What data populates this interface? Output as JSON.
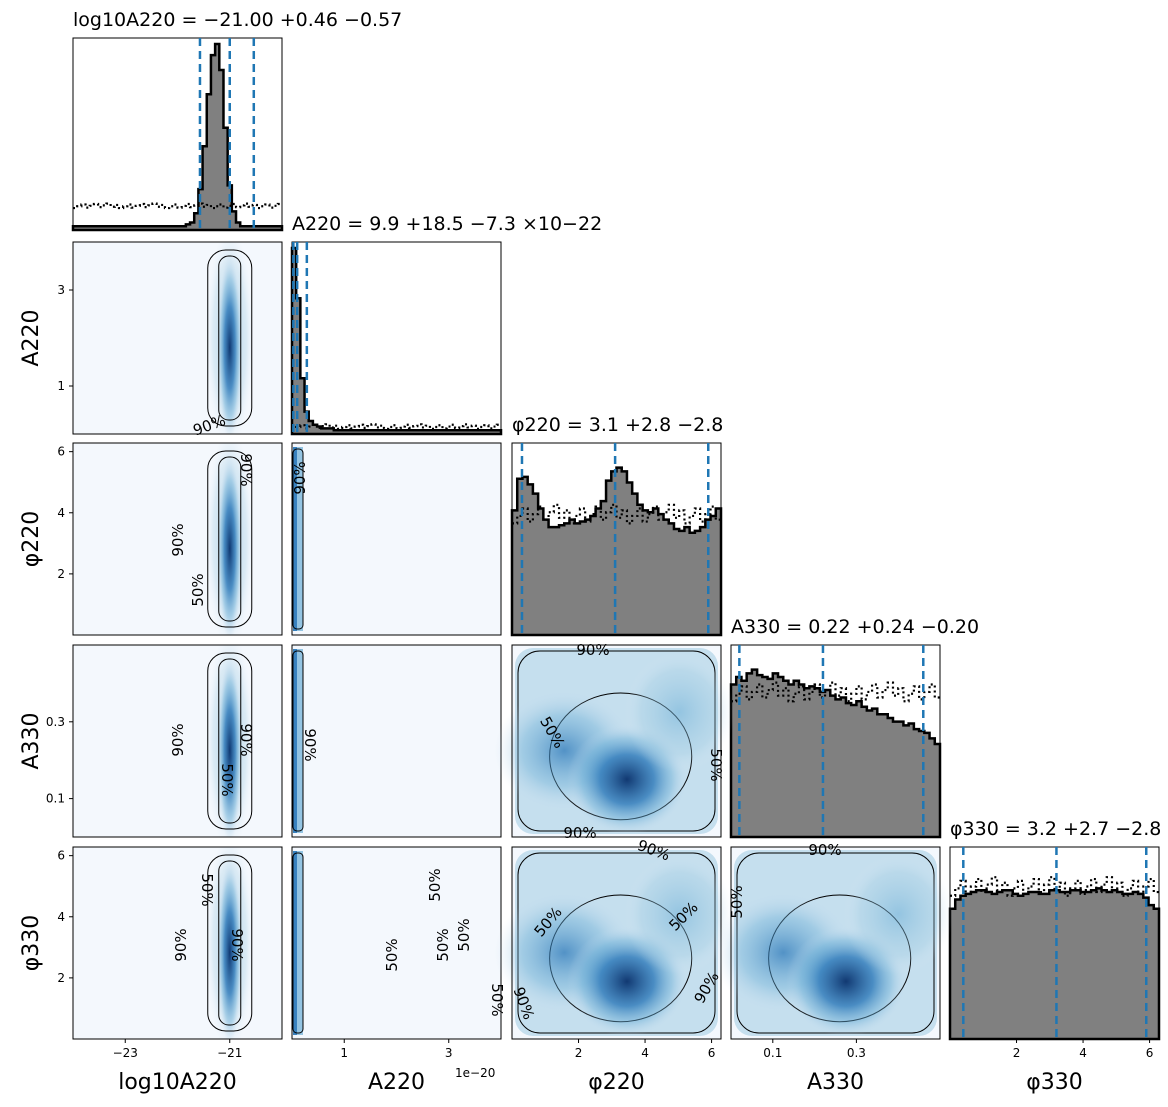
{
  "chart_data": {
    "type": "corner",
    "parameters": [
      {
        "key": "log10A220",
        "axis_label": "log10A220",
        "range": [
          -24.0,
          -20.0
        ],
        "ticks": [
          -23,
          -21
        ],
        "tick_labels": [
          "−23",
          "−21"
        ],
        "title": "log10A220 = −21.00 +0.46 −0.57",
        "quantiles": [
          -21.57,
          -21.0,
          -20.54
        ],
        "median": -21.0,
        "plus": 0.46,
        "minus": 0.57
      },
      {
        "key": "A220",
        "axis_label": "A220",
        "range": [
          0.0,
          4.0
        ],
        "ticks": [
          1,
          3
        ],
        "tick_labels": [
          "1",
          "3"
        ],
        "sci_offset": "1e−20",
        "title": "A220 = 9.9 +18.5 −7.3 ×10−22",
        "quantiles": [
          0.026,
          0.099,
          0.284
        ],
        "median": 9.9,
        "plus": 18.5,
        "minus": 7.3,
        "multiplier": "×10−22"
      },
      {
        "key": "phi220",
        "axis_label": "φ220",
        "range": [
          0.0,
          6.2832
        ],
        "ticks": [
          2,
          4,
          6
        ],
        "tick_labels": [
          "2",
          "4",
          "6"
        ],
        "title": "φ220 = 3.1 +2.8 −2.8",
        "quantiles": [
          0.3,
          3.1,
          5.9
        ],
        "median": 3.1,
        "plus": 2.8,
        "minus": 2.8
      },
      {
        "key": "A330",
        "axis_label": "A330",
        "range": [
          0.0,
          0.5
        ],
        "ticks": [
          0.1,
          0.3
        ],
        "tick_labels": [
          "0.1",
          "0.3"
        ],
        "title": "A330 = 0.22 +0.24 −0.20",
        "quantiles": [
          0.02,
          0.22,
          0.46
        ],
        "median": 0.22,
        "plus": 0.24,
        "minus": 0.2
      },
      {
        "key": "phi330",
        "axis_label": "φ330",
        "range": [
          0.0,
          6.2832
        ],
        "ticks": [
          2,
          4,
          6
        ],
        "tick_labels": [
          "2",
          "4",
          "6"
        ],
        "title": "φ330 = 3.2 +2.7 −2.8",
        "quantiles": [
          0.4,
          3.2,
          5.9
        ],
        "median": 3.2,
        "plus": 2.7,
        "minus": 2.8
      }
    ],
    "y_ticks": {
      "A220": {
        "ticks": [
          1,
          3
        ],
        "tick_labels": [
          "1",
          "3"
        ]
      },
      "phi220": {
        "ticks": [
          2,
          4,
          6
        ],
        "tick_labels": [
          "2",
          "4",
          "6"
        ]
      },
      "A330": {
        "ticks": [
          0.1,
          0.3
        ],
        "tick_labels": [
          "0.1",
          "0.3"
        ]
      },
      "phi330": {
        "ticks": [
          2,
          4,
          6
        ],
        "tick_labels": [
          "2",
          "4",
          "6"
        ]
      }
    },
    "histograms_1d": {
      "posterior": {
        "log10A220": [
          0.02,
          0.02,
          0.02,
          0.02,
          0.02,
          0.02,
          0.02,
          0.02,
          0.02,
          0.02,
          0.02,
          0.02,
          0.02,
          0.02,
          0.02,
          0.02,
          0.02,
          0.02,
          0.02,
          0.02,
          0.02,
          0.02,
          0.02,
          0.02,
          0.02,
          0.02,
          0.02,
          0.03,
          0.04,
          0.09,
          0.22,
          0.45,
          0.73,
          0.94,
          1.0,
          0.86,
          0.55,
          0.24,
          0.1,
          0.04,
          0.02,
          0.02,
          0.02,
          0.02,
          0.02,
          0.02,
          0.02,
          0.02,
          0.02,
          0.02
        ],
        "A220": [
          1.0,
          0.73,
          0.3,
          0.12,
          0.07,
          0.05,
          0.04,
          0.03,
          0.03,
          0.03,
          0.02,
          0.02,
          0.02,
          0.02,
          0.02,
          0.02,
          0.02,
          0.02,
          0.02,
          0.02,
          0.02,
          0.02,
          0.02,
          0.02,
          0.02,
          0.02,
          0.02,
          0.02,
          0.02,
          0.02,
          0.02,
          0.02,
          0.02,
          0.02,
          0.02,
          0.02,
          0.02,
          0.02,
          0.02,
          0.02,
          0.02,
          0.02,
          0.02,
          0.02,
          0.02,
          0.02,
          0.02,
          0.02,
          0.02,
          0.02
        ],
        "phi220": [
          0.67,
          0.84,
          0.85,
          0.81,
          0.76,
          0.68,
          0.62,
          0.58,
          0.58,
          0.59,
          0.6,
          0.62,
          0.6,
          0.61,
          0.62,
          0.64,
          0.68,
          0.72,
          0.83,
          0.88,
          0.9,
          0.88,
          0.82,
          0.76,
          0.7,
          0.67,
          0.66,
          0.68,
          0.65,
          0.62,
          0.6,
          0.57,
          0.56,
          0.58,
          0.55,
          0.56,
          0.58,
          0.62,
          0.64,
          0.68
        ],
        "A330": [
          0.82,
          0.86,
          0.84,
          0.88,
          0.9,
          0.87,
          0.86,
          0.85,
          0.88,
          0.86,
          0.84,
          0.82,
          0.84,
          0.82,
          0.8,
          0.81,
          0.8,
          0.78,
          0.79,
          0.76,
          0.74,
          0.75,
          0.72,
          0.71,
          0.73,
          0.7,
          0.68,
          0.69,
          0.66,
          0.66,
          0.64,
          0.62,
          0.62,
          0.6,
          0.61,
          0.58,
          0.57,
          0.56,
          0.53,
          0.5
        ],
        "phi330": [
          0.7,
          0.75,
          0.77,
          0.78,
          0.79,
          0.8,
          0.8,
          0.79,
          0.78,
          0.79,
          0.8,
          0.8,
          0.78,
          0.77,
          0.78,
          0.79,
          0.79,
          0.78,
          0.78,
          0.8,
          0.8,
          0.79,
          0.79,
          0.8,
          0.8,
          0.79,
          0.79,
          0.8,
          0.81,
          0.8,
          0.79,
          0.8,
          0.79,
          0.78,
          0.78,
          0.79,
          0.78,
          0.76,
          0.72,
          0.7
        ]
      },
      "prior": {
        "log10A220": 0.13,
        "A220": 0.04,
        "phi220": 0.65,
        "A330": 0.78,
        "phi330": 0.82
      }
    },
    "contour_levels": [
      "50%",
      "90%"
    ],
    "colormap": "Blues",
    "colors": {
      "hist_fill": "#808080",
      "hist_line": "#000000",
      "quantile_line": "#1f77b4",
      "kde_dark": "#08306b",
      "kde_light": "#f7fbff"
    }
  }
}
